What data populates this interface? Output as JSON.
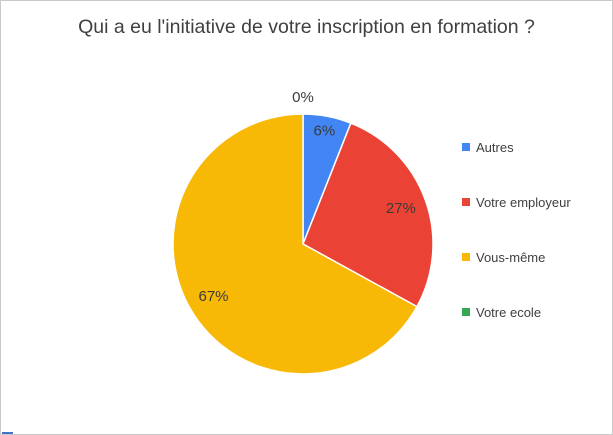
{
  "title": {
    "text": "Qui a eu l'initiative de votre inscription en formation ?"
  },
  "chart_data": {
    "type": "pie",
    "title": "Qui a eu l'initiative de votre inscription en formation ?",
    "legend_position": "right",
    "start_angle_deg": 0,
    "direction": "clockwise",
    "slices": [
      {
        "label": "Autres",
        "value_pct": 6,
        "color": "#4285f4",
        "data_label": "6%"
      },
      {
        "label": "Votre employeur",
        "value_pct": 27,
        "color": "#ea4335",
        "data_label": "27%"
      },
      {
        "label": "Vous-même",
        "value_pct": 67,
        "color": "#f8b806",
        "data_label": "67%"
      },
      {
        "label": "Votre ecole",
        "value_pct": 0,
        "color": "#34a853",
        "data_label": "0%"
      }
    ],
    "data_label_color": "#3b3b3b",
    "slice_border_color": "#ffffff"
  }
}
